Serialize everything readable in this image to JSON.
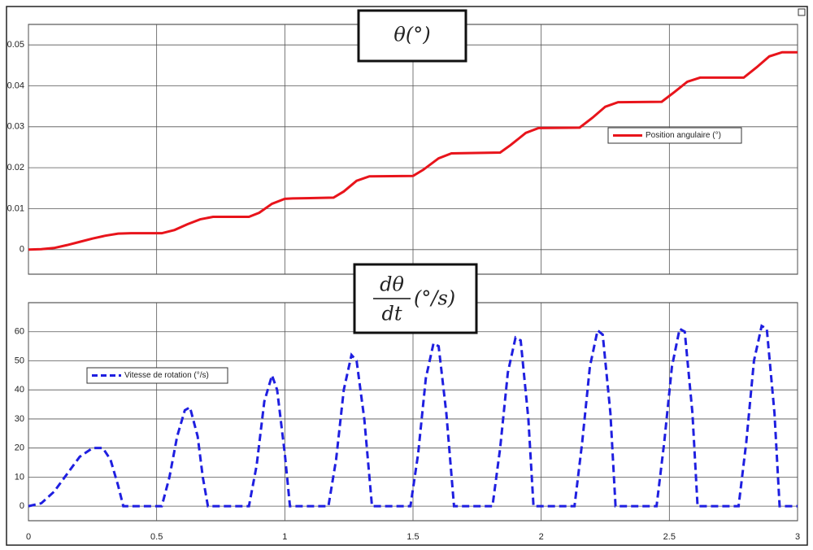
{
  "chart_data": [
    {
      "type": "line",
      "title": "θ(°)",
      "x": [
        0,
        0.05,
        0.1,
        0.15,
        0.2,
        0.25,
        0.3,
        0.35,
        0.4,
        0.52,
        0.57,
        0.62,
        0.67,
        0.72,
        0.86,
        0.9,
        0.95,
        1.0,
        1.03,
        1.19,
        1.23,
        1.28,
        1.33,
        1.5,
        1.54,
        1.6,
        1.65,
        1.84,
        1.88,
        1.94,
        1.99,
        2.15,
        2.2,
        2.25,
        2.3,
        2.47,
        2.52,
        2.57,
        2.62,
        2.79,
        2.84,
        2.89,
        2.94,
        3.0
      ],
      "series": [
        {
          "name": "Position angulaire (°)",
          "color": "#e8141b",
          "linestyle": "solid",
          "values": [
            0,
            0.0001,
            0.0004,
            0.0011,
            0.0019,
            0.0027,
            0.0034,
            0.0039,
            0.004,
            0.004,
            0.0048,
            0.0062,
            0.0074,
            0.008,
            0.008,
            0.009,
            0.0112,
            0.0124,
            0.0125,
            0.0127,
            0.0142,
            0.0168,
            0.0179,
            0.018,
            0.0195,
            0.0223,
            0.0235,
            0.0237,
            0.0255,
            0.0285,
            0.0297,
            0.0298,
            0.0322,
            0.0349,
            0.036,
            0.0361,
            0.0385,
            0.041,
            0.042,
            0.042,
            0.0445,
            0.0472,
            0.0482,
            0.0482
          ]
        }
      ],
      "xlim": [
        0,
        3
      ],
      "xticks": [
        0,
        0.5,
        1,
        1.5,
        2,
        2.5,
        3
      ],
      "xtick_labels": false,
      "ylim": [
        -0.006,
        0.055
      ],
      "yticks": [
        0,
        0.01,
        0.02,
        0.03,
        0.04,
        0.05
      ],
      "grid": true,
      "legend": "center right"
    },
    {
      "type": "line",
      "title": {
        "numerator": "dθ",
        "denominator": "dt",
        "after": "(°/s)"
      },
      "x": [
        0,
        0.05,
        0.1,
        0.15,
        0.2,
        0.25,
        0.29,
        0.32,
        0.35,
        0.37,
        0.52,
        0.55,
        0.58,
        0.61,
        0.63,
        0.66,
        0.68,
        0.7,
        0.86,
        0.89,
        0.92,
        0.95,
        0.97,
        1.0,
        1.02,
        1.17,
        1.2,
        1.23,
        1.26,
        1.28,
        1.31,
        1.34,
        1.49,
        1.52,
        1.55,
        1.58,
        1.6,
        1.63,
        1.66,
        1.81,
        1.84,
        1.87,
        1.9,
        1.92,
        1.95,
        1.97,
        2.13,
        2.16,
        2.19,
        2.22,
        2.24,
        2.27,
        2.29,
        2.45,
        2.48,
        2.51,
        2.54,
        2.56,
        2.59,
        2.61,
        2.77,
        2.8,
        2.83,
        2.86,
        2.88,
        2.91,
        2.93,
        3
      ],
      "series": [
        {
          "name": "Vitesse de rotation (°/s)",
          "color": "#1f1fe0",
          "linestyle": "dashed",
          "values": [
            0,
            1,
            5,
            11,
            17,
            20,
            20,
            16,
            7,
            0,
            0,
            10,
            24,
            33,
            34,
            24,
            10,
            0,
            0,
            14,
            36,
            45,
            40,
            18,
            0,
            0,
            16,
            40,
            52,
            50,
            30,
            0,
            0,
            18,
            44,
            56,
            55,
            32,
            0,
            0,
            20,
            46,
            58,
            57,
            30,
            0,
            0,
            22,
            48,
            60.5,
            59,
            32,
            0,
            0,
            22,
            48,
            61,
            60,
            32,
            0,
            0,
            22,
            50,
            62,
            61,
            32,
            0,
            0
          ]
        }
      ],
      "xlim": [
        0,
        3
      ],
      "xticks": [
        0,
        0.5,
        1,
        1.5,
        2,
        2.5,
        3
      ],
      "xtick_labels": true,
      "ylim": [
        -5,
        70
      ],
      "yticks": [
        0,
        10,
        20,
        30,
        40,
        50,
        60
      ],
      "grid": true,
      "legend": "upper left"
    }
  ]
}
